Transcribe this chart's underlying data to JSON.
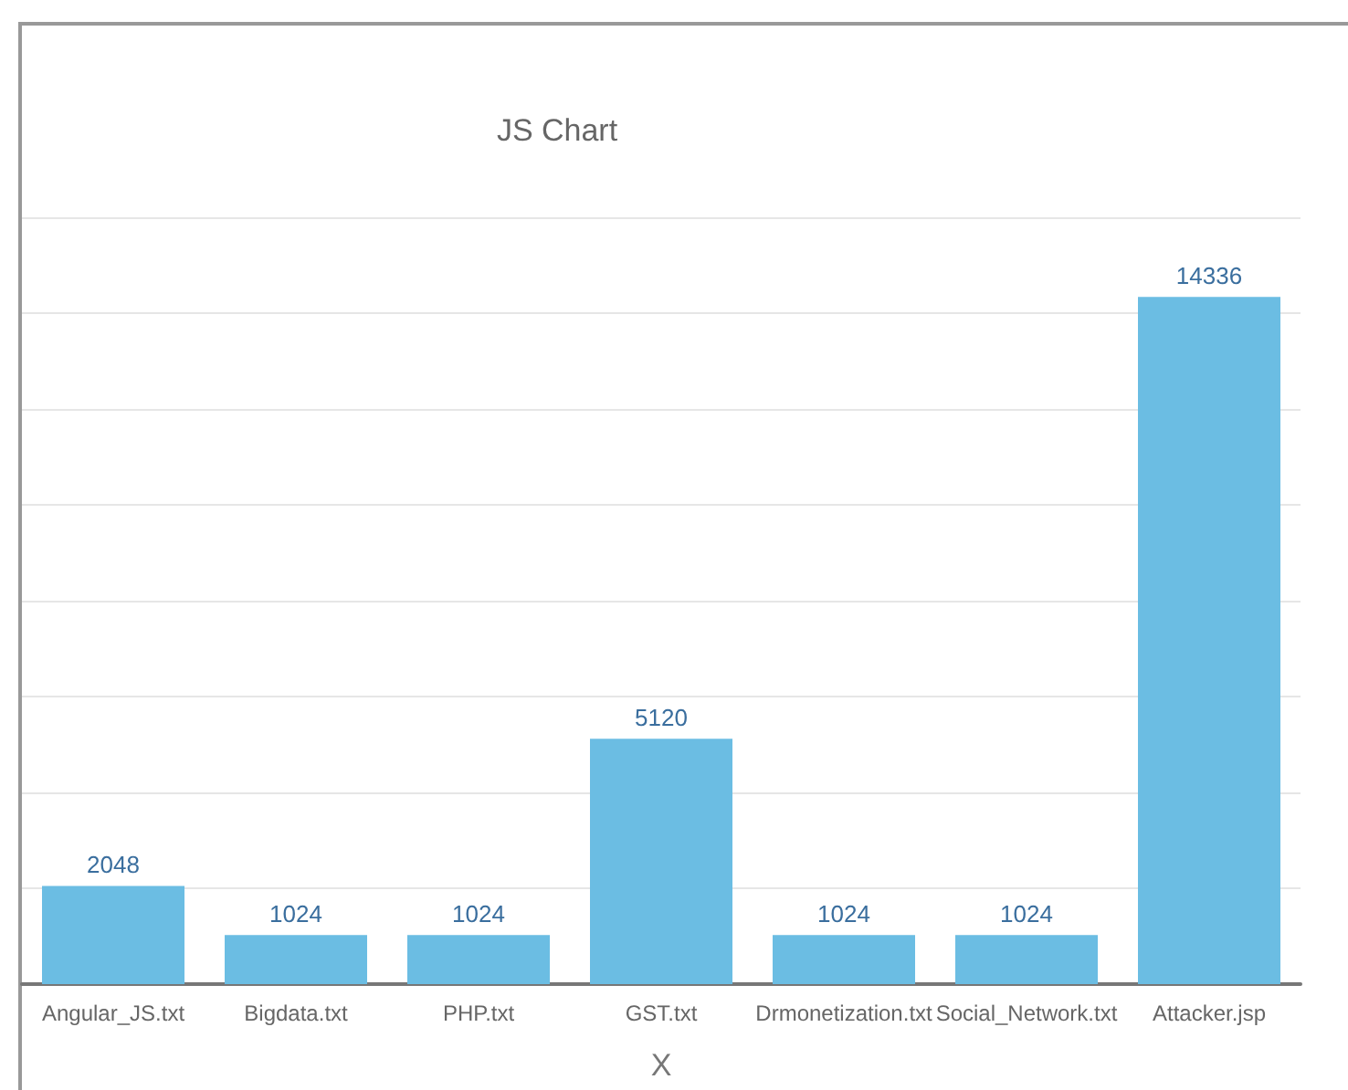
{
  "chart_data": {
    "type": "bar",
    "title": "JS Chart",
    "xlabel": "X",
    "categories": [
      "Angular_JS.txt",
      "Bigdata.txt",
      "PHP.txt",
      "GST.txt",
      "Drmonetization.txt",
      "Social_Network.txt",
      "Attacker.jsp"
    ],
    "values": [
      2048,
      1024,
      1024,
      5120,
      1024,
      1024,
      14336
    ],
    "color": "#6bbde3",
    "ylim": [
      0,
      16000
    ],
    "yticks": [
      {
        "value": 0,
        "label": null
      },
      {
        "value": 2000,
        "label": null
      },
      {
        "value": 4000,
        "label": null
      },
      {
        "value": 6000,
        "label": null
      },
      {
        "value": 8000,
        "label": null
      },
      {
        "value": 10000,
        "label": null
      },
      {
        "value": 12000,
        "label": null
      },
      {
        "value": 14000,
        "label": null
      },
      {
        "value": 16000,
        "label": null
      }
    ],
    "tick_labels": "x",
    "grid": "y",
    "data_labels": true
  }
}
